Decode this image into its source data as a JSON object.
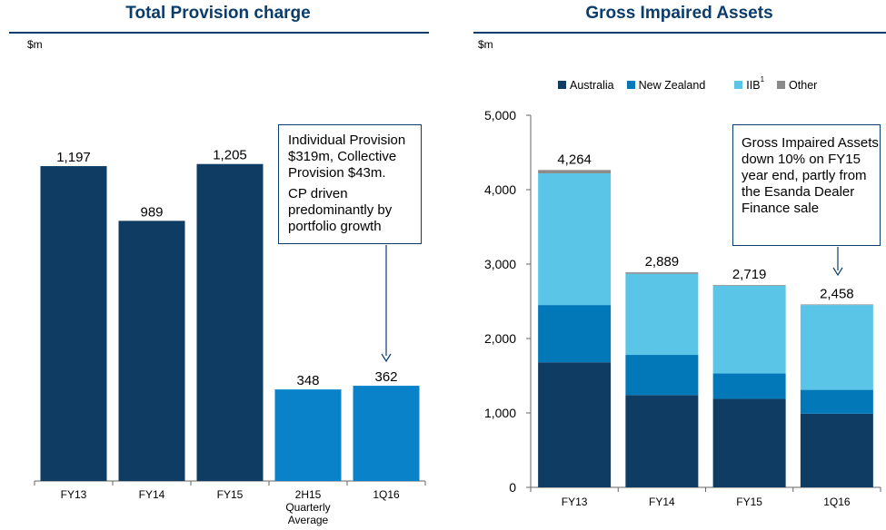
{
  "colors": {
    "australia": "#0e3c62",
    "new_zealand": "#0278b9",
    "iib": "#5bc5e8",
    "other": "#8a8a8a",
    "provision_dark": "#0e3c62",
    "provision_light": "#0a82c9"
  },
  "left_panel": {
    "title": "Total Provision charge",
    "unit": "$m",
    "callout": {
      "p1": "Individual Provision $319m, Collective Provision $43m.",
      "p2": "CP driven predominantly by portfolio growth"
    }
  },
  "right_panel": {
    "title": "Gross Impaired Assets",
    "unit": "$m",
    "legend": {
      "australia": "Australia",
      "new_zealand": "New Zealand",
      "iib": "IIB",
      "iib_sup": "1",
      "other": "Other"
    },
    "callout": {
      "p1": "Gross Impaired Assets down 10% on FY15 year end, partly from the Esanda Dealer Finance sale"
    }
  },
  "chart_data": [
    {
      "type": "bar",
      "title": "Total Provision charge",
      "ylabel": "$m",
      "categories": [
        "FY13",
        "FY14",
        "FY15",
        "2H15 Quarterly Average",
        "1Q16"
      ],
      "category_lines": [
        [
          "FY13"
        ],
        [
          "FY14"
        ],
        [
          "FY15"
        ],
        [
          "2H15",
          "Quarterly",
          "Average"
        ],
        [
          "1Q16"
        ]
      ],
      "values": [
        1197,
        989,
        1205,
        348,
        362
      ],
      "value_labels": [
        "1,197",
        "989",
        "1,205",
        "348",
        "362"
      ],
      "ylim": [
        0,
        1380
      ]
    },
    {
      "type": "bar",
      "stacked": true,
      "title": "Gross Impaired Assets",
      "ylabel": "$m",
      "categories": [
        "FY13",
        "FY14",
        "FY15",
        "1Q16"
      ],
      "series": [
        {
          "name": "Australia",
          "values": [
            1680,
            1240,
            1190,
            990
          ]
        },
        {
          "name": "New Zealand",
          "values": [
            770,
            540,
            340,
            320
          ]
        },
        {
          "name": "IIB",
          "values": [
            1770,
            1090,
            1180,
            1140
          ]
        },
        {
          "name": "Other",
          "values": [
            44,
            19,
            9,
            8
          ]
        }
      ],
      "totals": [
        "4,264",
        "2,889",
        "2,719",
        "2,458"
      ],
      "yticks": [
        "0",
        "1,000",
        "2,000",
        "3,000",
        "4,000",
        "5,000"
      ],
      "ylim": [
        0,
        5000
      ],
      "legend": "top"
    }
  ]
}
